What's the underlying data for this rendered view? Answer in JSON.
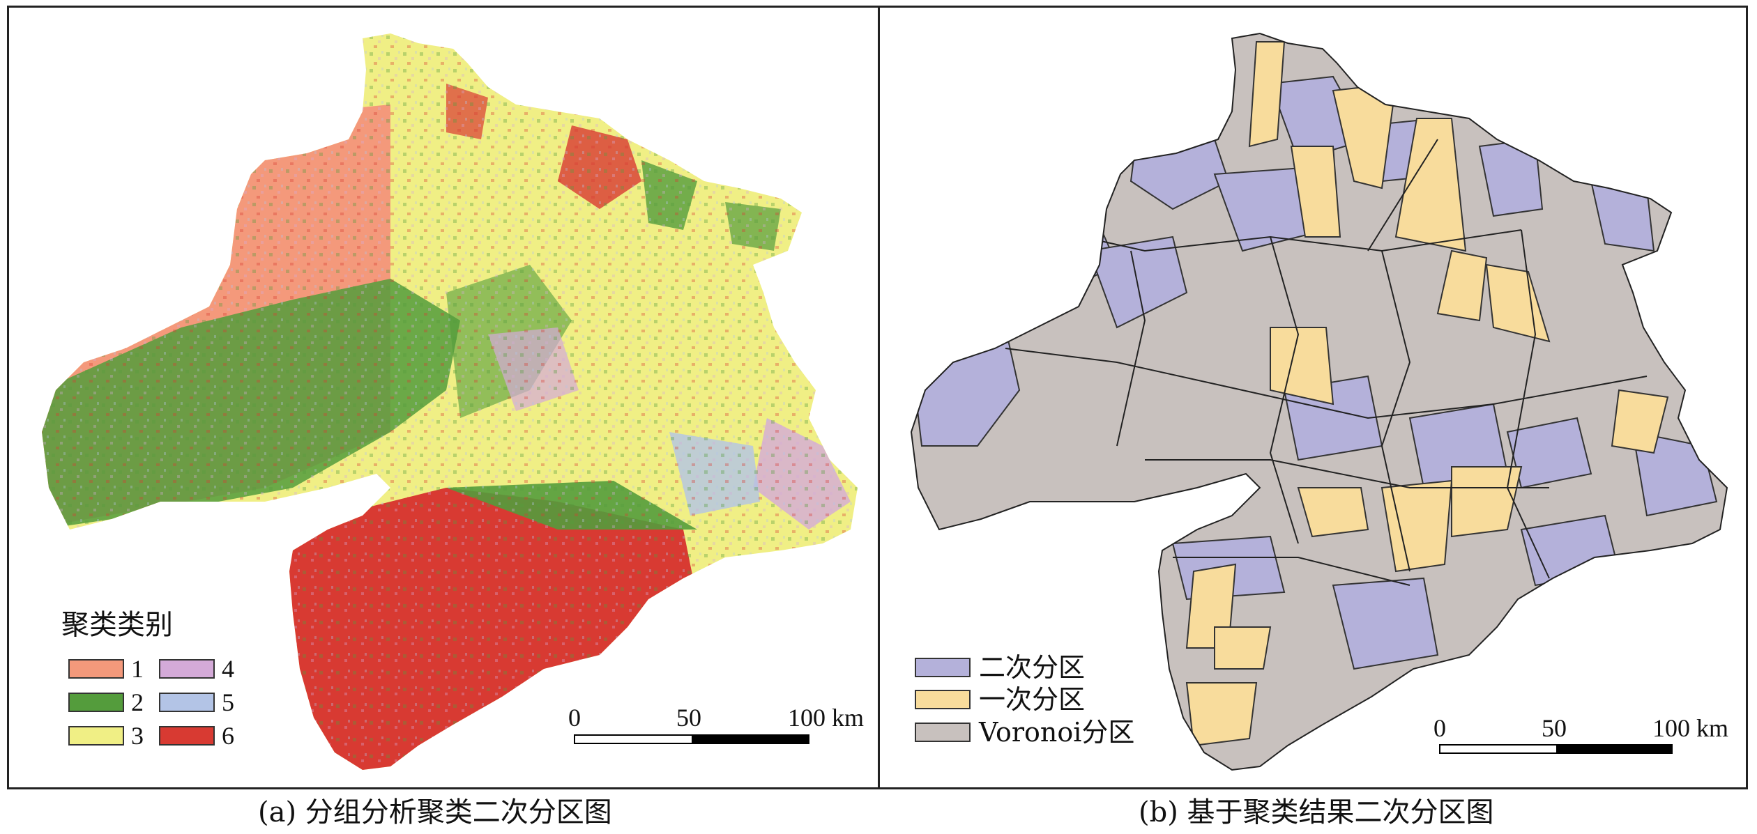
{
  "panel_a": {
    "legend_title": "聚类类别",
    "legend": [
      {
        "label": "1",
        "color": "#f4997b"
      },
      {
        "label": "2",
        "color": "#549c3c"
      },
      {
        "label": "3",
        "color": "#f0ef85"
      },
      {
        "label": "4",
        "color": "#d4aad8"
      },
      {
        "label": "5",
        "color": "#b3c4e6"
      },
      {
        "label": "6",
        "color": "#d83a32"
      }
    ],
    "scale": {
      "t0": "0",
      "t1": "50",
      "t2": "100 km"
    },
    "caption": "(a) 分组分析聚类二次分区图"
  },
  "panel_b": {
    "legend": [
      {
        "label": "二次分区",
        "color": "#b4b1da"
      },
      {
        "label": "一次分区",
        "color": "#f8dc9c"
      },
      {
        "label": "Voronoi分区",
        "color": "#c8c1be"
      }
    ],
    "scale": {
      "t0": "0",
      "t1": "50",
      "t2": "100 km"
    },
    "caption": "(b) 基于聚类结果二次分区图"
  }
}
